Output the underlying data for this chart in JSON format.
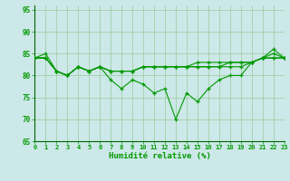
{
  "xlabel": "Humidité relative (%)",
  "xlim": [
    0,
    23
  ],
  "ylim": [
    65,
    96
  ],
  "yticks": [
    65,
    70,
    75,
    80,
    85,
    90,
    95
  ],
  "xticks": [
    0,
    1,
    2,
    3,
    4,
    5,
    6,
    7,
    8,
    9,
    10,
    11,
    12,
    13,
    14,
    15,
    16,
    17,
    18,
    19,
    20,
    21,
    22,
    23
  ],
  "background_color": "#cce8e8",
  "grid_color": "#99cc99",
  "line_color": "#009900",
  "lines": [
    [
      84,
      85,
      81,
      80,
      82,
      81,
      82,
      79,
      77,
      79,
      78,
      76,
      77,
      70,
      76,
      74,
      77,
      79,
      80,
      80,
      83,
      84,
      86,
      84
    ],
    [
      84,
      84,
      81,
      80,
      82,
      81,
      82,
      81,
      81,
      81,
      82,
      82,
      82,
      82,
      82,
      82,
      82,
      82,
      83,
      83,
      83,
      84,
      84,
      84
    ],
    [
      84,
      84,
      81,
      80,
      82,
      81,
      82,
      81,
      81,
      81,
      82,
      82,
      82,
      82,
      82,
      82,
      82,
      82,
      82,
      82,
      83,
      84,
      84,
      84
    ],
    [
      84,
      84,
      81,
      80,
      82,
      81,
      82,
      81,
      81,
      81,
      82,
      82,
      82,
      82,
      82,
      83,
      83,
      83,
      83,
      83,
      83,
      84,
      85,
      84
    ]
  ]
}
